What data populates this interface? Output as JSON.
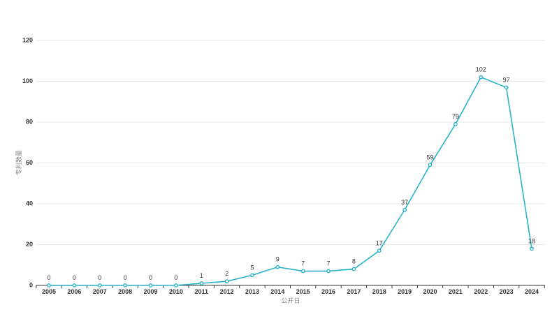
{
  "colors": {
    "series": "#2ab3c9"
  },
  "chart_data": {
    "type": "line",
    "title": "",
    "xlabel": "公开日",
    "ylabel": "专利数量",
    "x": [
      "2005",
      "2006",
      "2007",
      "2008",
      "2009",
      "2010",
      "2011",
      "2012",
      "2013",
      "2014",
      "2015",
      "2016",
      "2017",
      "2018",
      "2019",
      "2020",
      "2021",
      "2022",
      "2023",
      "2024"
    ],
    "series": [
      {
        "values": [
          0,
          0,
          0,
          0,
          0,
          0,
          1,
          2,
          5,
          9,
          7,
          7,
          8,
          17,
          37,
          59,
          79,
          102,
          97,
          18
        ]
      }
    ],
    "ylim": [
      0,
      120
    ],
    "yticks": [
      0,
      20,
      40,
      60,
      80,
      100,
      120
    ],
    "grid": true,
    "legend": "none"
  }
}
